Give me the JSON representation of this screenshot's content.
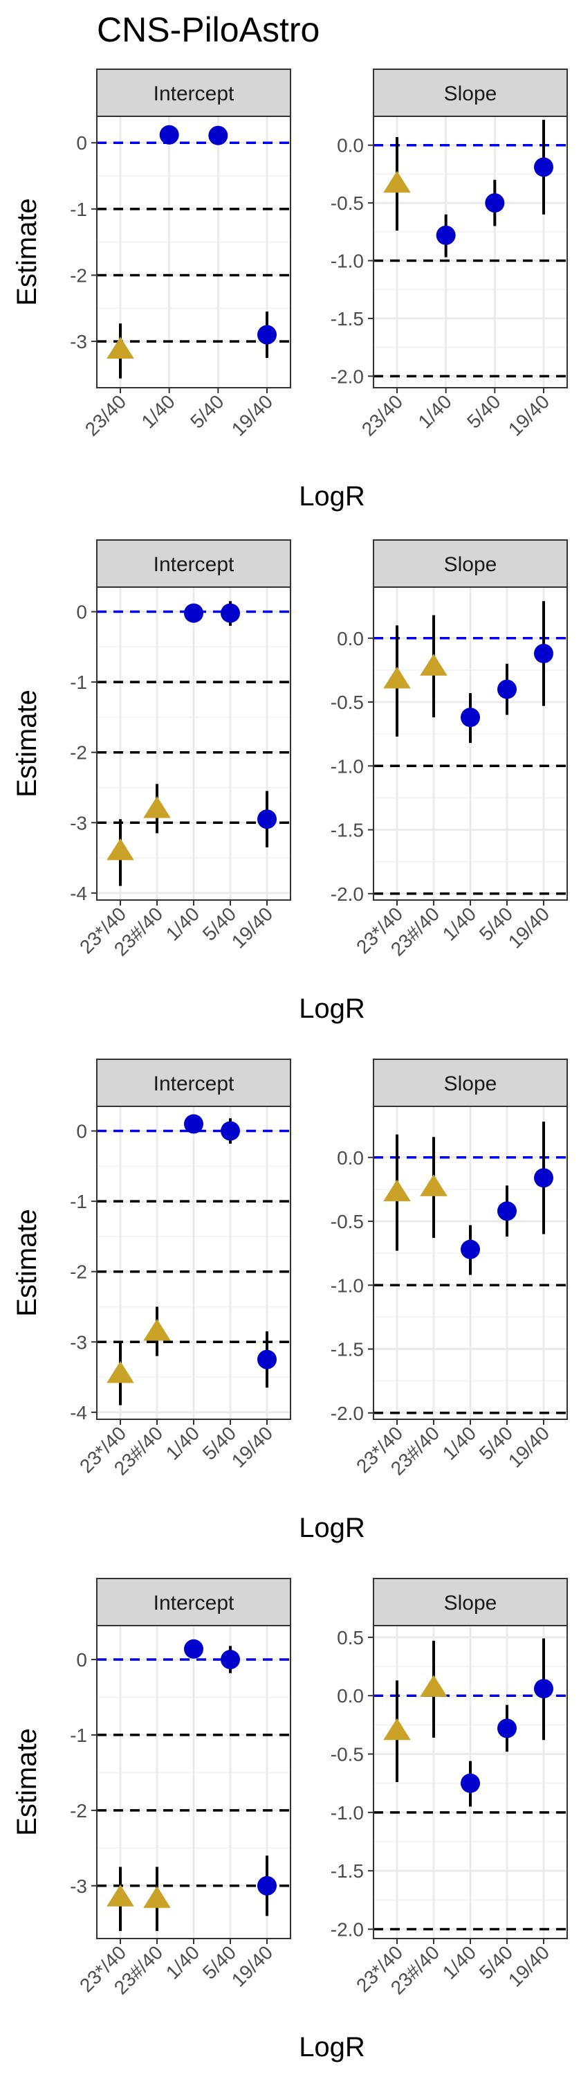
{
  "page": {
    "title": "CNS-PiloAstro"
  },
  "chart_data": [
    {
      "type": "scatter",
      "xlabel": "LogR",
      "ylabel": "Estimate",
      "panels": [
        {
          "strip": "Intercept",
          "categories": [
            "23/40",
            "1/40",
            "5/40",
            "19/40"
          ],
          "ylim": [
            -3.7,
            0.4
          ],
          "yticks": [
            0,
            -1,
            -2,
            -3
          ],
          "ref_lines": [
            0,
            -1,
            -2,
            -3
          ],
          "points": [
            {
              "x": "23/40",
              "y": -3.12,
              "lo": -3.56,
              "hi": -2.73,
              "shape": "triangle",
              "color": "#c9a227"
            },
            {
              "x": "1/40",
              "y": 0.12,
              "lo": 0.02,
              "hi": 0.22,
              "shape": "circle",
              "color": "#0000cc"
            },
            {
              "x": "5/40",
              "y": 0.11,
              "lo": 0.01,
              "hi": 0.21,
              "shape": "circle",
              "color": "#0000cc"
            },
            {
              "x": "19/40",
              "y": -2.9,
              "lo": -3.25,
              "hi": -2.55,
              "shape": "circle",
              "color": "#0000cc"
            }
          ]
        },
        {
          "strip": "Slope",
          "categories": [
            "23/40",
            "1/40",
            "5/40",
            "19/40"
          ],
          "ylim": [
            -2.1,
            0.25
          ],
          "yticks": [
            0.0,
            -0.5,
            -1.0,
            -1.5,
            -2.0
          ],
          "tick_format": 1,
          "ref_lines": [
            0,
            -1,
            -2
          ],
          "points": [
            {
              "x": "23/40",
              "y": -0.33,
              "lo": -0.74,
              "hi": 0.07,
              "shape": "triangle",
              "color": "#c9a227"
            },
            {
              "x": "1/40",
              "y": -0.78,
              "lo": -0.97,
              "hi": -0.6,
              "shape": "circle",
              "color": "#0000cc"
            },
            {
              "x": "5/40",
              "y": -0.5,
              "lo": -0.7,
              "hi": -0.3,
              "shape": "circle",
              "color": "#0000cc"
            },
            {
              "x": "19/40",
              "y": -0.19,
              "lo": -0.6,
              "hi": 0.22,
              "shape": "circle",
              "color": "#0000cc"
            }
          ]
        }
      ]
    },
    {
      "type": "scatter",
      "xlabel": "LogR",
      "ylabel": "Estimate",
      "panels": [
        {
          "strip": "Intercept",
          "categories": [
            "23*/40",
            "23#/40",
            "1/40",
            "5/40",
            "19/40"
          ],
          "ylim": [
            -4.1,
            0.35
          ],
          "yticks": [
            0,
            -1,
            -2,
            -3,
            -4
          ],
          "ref_lines": [
            0,
            -1,
            -2,
            -3
          ],
          "points": [
            {
              "x": "23*/40",
              "y": -3.4,
              "lo": -3.9,
              "hi": -2.95,
              "shape": "triangle",
              "color": "#c9a227"
            },
            {
              "x": "23#/40",
              "y": -2.8,
              "lo": -3.15,
              "hi": -2.45,
              "shape": "triangle",
              "color": "#c9a227"
            },
            {
              "x": "1/40",
              "y": -0.02,
              "lo": -0.12,
              "hi": 0.08,
              "shape": "circle",
              "color": "#0000cc"
            },
            {
              "x": "5/40",
              "y": -0.02,
              "lo": -0.2,
              "hi": 0.15,
              "shape": "circle",
              "color": "#0000cc"
            },
            {
              "x": "19/40",
              "y": -2.95,
              "lo": -3.35,
              "hi": -2.55,
              "shape": "circle",
              "color": "#0000cc"
            }
          ]
        },
        {
          "strip": "Slope",
          "categories": [
            "23*/40",
            "23#/40",
            "1/40",
            "5/40",
            "19/40"
          ],
          "ylim": [
            -2.05,
            0.4
          ],
          "yticks": [
            0.0,
            -0.5,
            -1.0,
            -1.5,
            -2.0
          ],
          "tick_format": 1,
          "ref_lines": [
            0,
            -1,
            -2
          ],
          "points": [
            {
              "x": "23*/40",
              "y": -0.32,
              "lo": -0.77,
              "hi": 0.1,
              "shape": "triangle",
              "color": "#c9a227"
            },
            {
              "x": "23#/40",
              "y": -0.22,
              "lo": -0.62,
              "hi": 0.18,
              "shape": "triangle",
              "color": "#c9a227"
            },
            {
              "x": "1/40",
              "y": -0.62,
              "lo": -0.82,
              "hi": -0.43,
              "shape": "circle",
              "color": "#0000cc"
            },
            {
              "x": "5/40",
              "y": -0.4,
              "lo": -0.6,
              "hi": -0.2,
              "shape": "circle",
              "color": "#0000cc"
            },
            {
              "x": "19/40",
              "y": -0.12,
              "lo": -0.53,
              "hi": 0.29,
              "shape": "circle",
              "color": "#0000cc"
            }
          ]
        }
      ]
    },
    {
      "type": "scatter",
      "xlabel": "LogR",
      "ylabel": "Estimate",
      "panels": [
        {
          "strip": "Intercept",
          "categories": [
            "23*/40",
            "23#/40",
            "1/40",
            "5/40",
            "19/40"
          ],
          "ylim": [
            -4.1,
            0.35
          ],
          "yticks": [
            0,
            -1,
            -2,
            -3,
            -4
          ],
          "ref_lines": [
            0,
            -1,
            -2,
            -3
          ],
          "points": [
            {
              "x": "23*/40",
              "y": -3.45,
              "lo": -3.9,
              "hi": -3.0,
              "shape": "triangle",
              "color": "#c9a227"
            },
            {
              "x": "23#/40",
              "y": -2.85,
              "lo": -3.2,
              "hi": -2.5,
              "shape": "triangle",
              "color": "#c9a227"
            },
            {
              "x": "1/40",
              "y": 0.1,
              "lo": 0.0,
              "hi": 0.2,
              "shape": "circle",
              "color": "#0000cc"
            },
            {
              "x": "5/40",
              "y": 0.0,
              "lo": -0.18,
              "hi": 0.18,
              "shape": "circle",
              "color": "#0000cc"
            },
            {
              "x": "19/40",
              "y": -3.25,
              "lo": -3.65,
              "hi": -2.85,
              "shape": "circle",
              "color": "#0000cc"
            }
          ]
        },
        {
          "strip": "Slope",
          "categories": [
            "23*/40",
            "23#/40",
            "1/40",
            "5/40",
            "19/40"
          ],
          "ylim": [
            -2.05,
            0.4
          ],
          "yticks": [
            0.0,
            -0.5,
            -1.0,
            -1.5,
            -2.0
          ],
          "tick_format": 1,
          "ref_lines": [
            0,
            -1,
            -2
          ],
          "points": [
            {
              "x": "23*/40",
              "y": -0.27,
              "lo": -0.73,
              "hi": 0.18,
              "shape": "triangle",
              "color": "#c9a227"
            },
            {
              "x": "23#/40",
              "y": -0.23,
              "lo": -0.63,
              "hi": 0.16,
              "shape": "triangle",
              "color": "#c9a227"
            },
            {
              "x": "1/40",
              "y": -0.72,
              "lo": -0.92,
              "hi": -0.53,
              "shape": "circle",
              "color": "#0000cc"
            },
            {
              "x": "5/40",
              "y": -0.42,
              "lo": -0.62,
              "hi": -0.22,
              "shape": "circle",
              "color": "#0000cc"
            },
            {
              "x": "19/40",
              "y": -0.16,
              "lo": -0.6,
              "hi": 0.28,
              "shape": "circle",
              "color": "#0000cc"
            }
          ]
        }
      ]
    },
    {
      "type": "scatter",
      "xlabel": "LogR",
      "ylabel": "Estimate",
      "panels": [
        {
          "strip": "Intercept",
          "categories": [
            "23*/40",
            "23#/40",
            "1/40",
            "5/40",
            "19/40"
          ],
          "ylim": [
            -3.7,
            0.45
          ],
          "yticks": [
            0,
            -1,
            -2,
            -3
          ],
          "ref_lines": [
            0,
            -1,
            -2,
            -3
          ],
          "points": [
            {
              "x": "23*/40",
              "y": -3.15,
              "lo": -3.6,
              "hi": -2.75,
              "shape": "triangle",
              "color": "#c9a227"
            },
            {
              "x": "23#/40",
              "y": -3.17,
              "lo": -3.6,
              "hi": -2.75,
              "shape": "triangle",
              "color": "#c9a227"
            },
            {
              "x": "1/40",
              "y": 0.14,
              "lo": 0.04,
              "hi": 0.24,
              "shape": "circle",
              "color": "#0000cc"
            },
            {
              "x": "5/40",
              "y": 0.0,
              "lo": -0.18,
              "hi": 0.18,
              "shape": "circle",
              "color": "#0000cc"
            },
            {
              "x": "19/40",
              "y": -3.0,
              "lo": -3.4,
              "hi": -2.6,
              "shape": "circle",
              "color": "#0000cc"
            }
          ]
        },
        {
          "strip": "Slope",
          "categories": [
            "23*/40",
            "23#/40",
            "1/40",
            "5/40",
            "19/40"
          ],
          "ylim": [
            -2.08,
            0.6
          ],
          "yticks": [
            0.5,
            0.0,
            -0.5,
            -1.0,
            -1.5,
            -2.0
          ],
          "tick_format": 1,
          "ref_lines": [
            0,
            -1,
            -2
          ],
          "points": [
            {
              "x": "23*/40",
              "y": -0.3,
              "lo": -0.74,
              "hi": 0.13,
              "shape": "triangle",
              "color": "#c9a227"
            },
            {
              "x": "23#/40",
              "y": 0.07,
              "lo": -0.36,
              "hi": 0.47,
              "shape": "triangle",
              "color": "#c9a227"
            },
            {
              "x": "1/40",
              "y": -0.75,
              "lo": -0.95,
              "hi": -0.56,
              "shape": "circle",
              "color": "#0000cc"
            },
            {
              "x": "5/40",
              "y": -0.28,
              "lo": -0.48,
              "hi": -0.08,
              "shape": "circle",
              "color": "#0000cc"
            },
            {
              "x": "19/40",
              "y": 0.06,
              "lo": -0.38,
              "hi": 0.49,
              "shape": "circle",
              "color": "#0000cc"
            }
          ]
        }
      ]
    }
  ],
  "colors": {
    "zero_line": "#0000ee",
    "ref_line": "#000000",
    "strip_fill": "#d6d6d6",
    "grid": "#ebebeb"
  }
}
